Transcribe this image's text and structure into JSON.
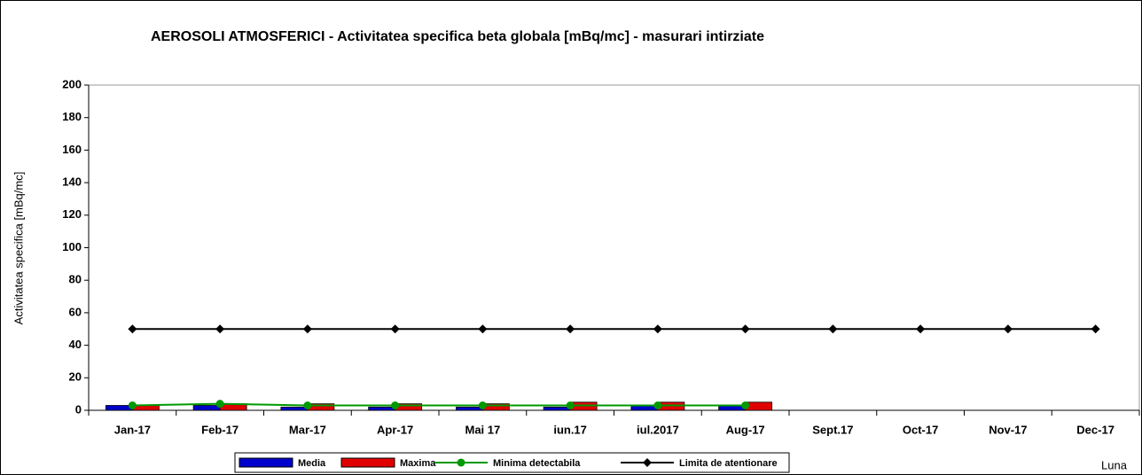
{
  "chart_data": {
    "type": "bar",
    "title": "AEROSOLI  ATMOSFERICI - Activitatea specifica beta globala [mBq/mc] - masurari intirziate",
    "y_label": "Activitatea  specifica  [mBq/mc]",
    "x_label": "Luna",
    "categories": [
      "Jan-17",
      "Feb-17",
      "Mar-17",
      "Apr-17",
      "Mai 17",
      "iun.17",
      "iul.2017",
      "Aug-17",
      "Sept.17",
      "Oct-17",
      "Nov-17",
      "Dec-17"
    ],
    "series": [
      {
        "name": "Media",
        "type": "bar",
        "color": "#0000cc",
        "values": [
          3,
          3,
          2,
          2,
          2,
          2,
          3,
          3,
          null,
          null,
          null,
          null
        ]
      },
      {
        "name": "Maxima",
        "type": "bar",
        "color": "#e00000",
        "values": [
          3,
          4,
          4,
          4,
          4,
          5,
          5,
          5,
          null,
          null,
          null,
          null
        ]
      },
      {
        "name": "Minima detectabila",
        "type": "line",
        "color": "#009900",
        "values": [
          3,
          4,
          3,
          3,
          3,
          3,
          3,
          3,
          null,
          null,
          null,
          null
        ]
      },
      {
        "name": "Limita de atentionare",
        "type": "line",
        "color": "#000000",
        "values": [
          50,
          50,
          50,
          50,
          50,
          50,
          50,
          50,
          50,
          50,
          50,
          50
        ]
      }
    ],
    "ylim": [
      0,
      200
    ],
    "yticks": [
      0,
      20,
      40,
      60,
      80,
      100,
      120,
      140,
      160,
      180,
      200
    ],
    "grid": false
  }
}
